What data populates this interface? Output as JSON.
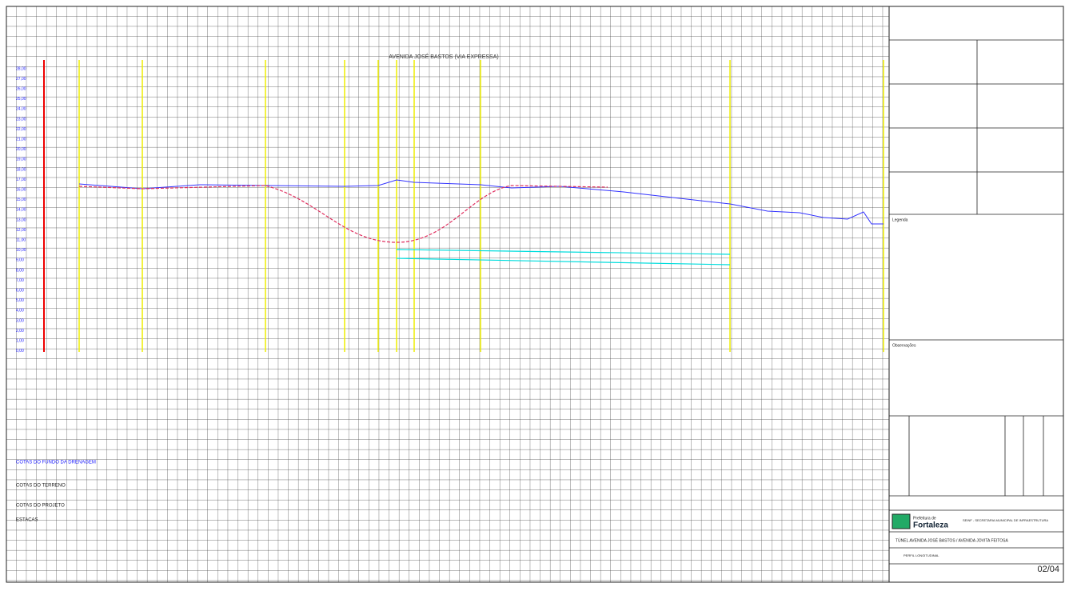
{
  "title": "AVENIDA JOSÉ BASTOS (VIA EXPRESSA)",
  "elevation_labels": [
    "28,00",
    "27,00",
    "26,00",
    "25,00",
    "24,00",
    "23,00",
    "22,00",
    "21,00",
    "20,00",
    "19,00",
    "18,00",
    "17,00",
    "16,00",
    "15,00",
    "14,00",
    "13,00",
    "12,00",
    "11,00",
    "10,00",
    "9,00",
    "8,00",
    "7,00",
    "6,00",
    "5,00",
    "4,00",
    "3,00",
    "2,00",
    "1,00",
    "0,00"
  ],
  "row_labels": [
    "COTAS DO FUNDO DA DRENAGEM",
    "COTAS DO TERRENO",
    "COTAS DO PROJETO",
    "ESTACAS"
  ],
  "title_block": {
    "logo_line1": "Prefeitura de",
    "logo_line2": "Fortaleza",
    "agency": "SEINF - SECRETARIA MUNICIPAL DE INFRAESTRUTURA",
    "project": "TÚNEL AVENIDA JOSÉ BASTOS / AVENIDA JOVITA FEITOSA",
    "drawing": "PERFIL LONGITUDINAL",
    "sheet": "02/04",
    "legend": "Legenda",
    "notes": "Observações"
  }
}
